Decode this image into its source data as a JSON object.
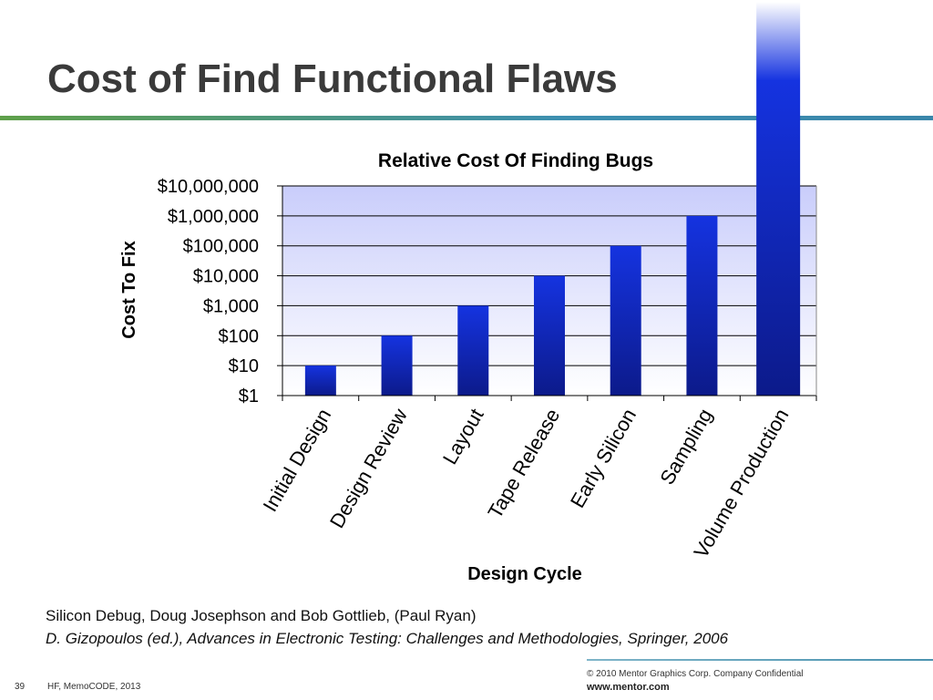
{
  "slide": {
    "title": "Cost of Find Functional Flaws",
    "references": [
      "Silicon Debug, Doug Josephson and Bob Gottlieb, (Paul Ryan)",
      "D. Gizopoulos (ed.), Advances in Electronic Testing: Challenges and Methodologies, Springer, 2006"
    ],
    "footer": {
      "copyright": "© 2010 Mentor Graphics Corp. Company Confidential",
      "website": "www.mentor.com",
      "page_number": "39",
      "event": "HF, MemoCODE, 2013"
    }
  },
  "chart_data": {
    "type": "bar",
    "title": "Relative Cost Of Finding Bugs",
    "xlabel": "Design Cycle",
    "ylabel": "Cost To Fix",
    "yscale": "log",
    "ylim": [
      1,
      10000000
    ],
    "yticks": [
      1,
      10,
      100,
      1000,
      10000,
      100000,
      1000000,
      10000000
    ],
    "ytick_labels": [
      "$1",
      "$10",
      "$100",
      "$1,000",
      "$10,000",
      "$100,000",
      "$1,000,000",
      "$10,000,000"
    ],
    "categories": [
      "Initial Design",
      "Design Review",
      "Layout",
      "Tape Release",
      "Early Silicon",
      "Sampling",
      "Volume Production"
    ],
    "values": [
      10,
      100,
      1000,
      10000,
      100000,
      1000000,
      10000000
    ],
    "grid": true,
    "legend": "none",
    "colors": {
      "bar": "#1533e0",
      "bar_dark": "#0c1a8a",
      "plot_background_top": "#c9cdfb",
      "plot_background_bottom": "#ffffff",
      "title_rule": "#3d8fb0",
      "title_color": "#3a3a3a"
    }
  }
}
